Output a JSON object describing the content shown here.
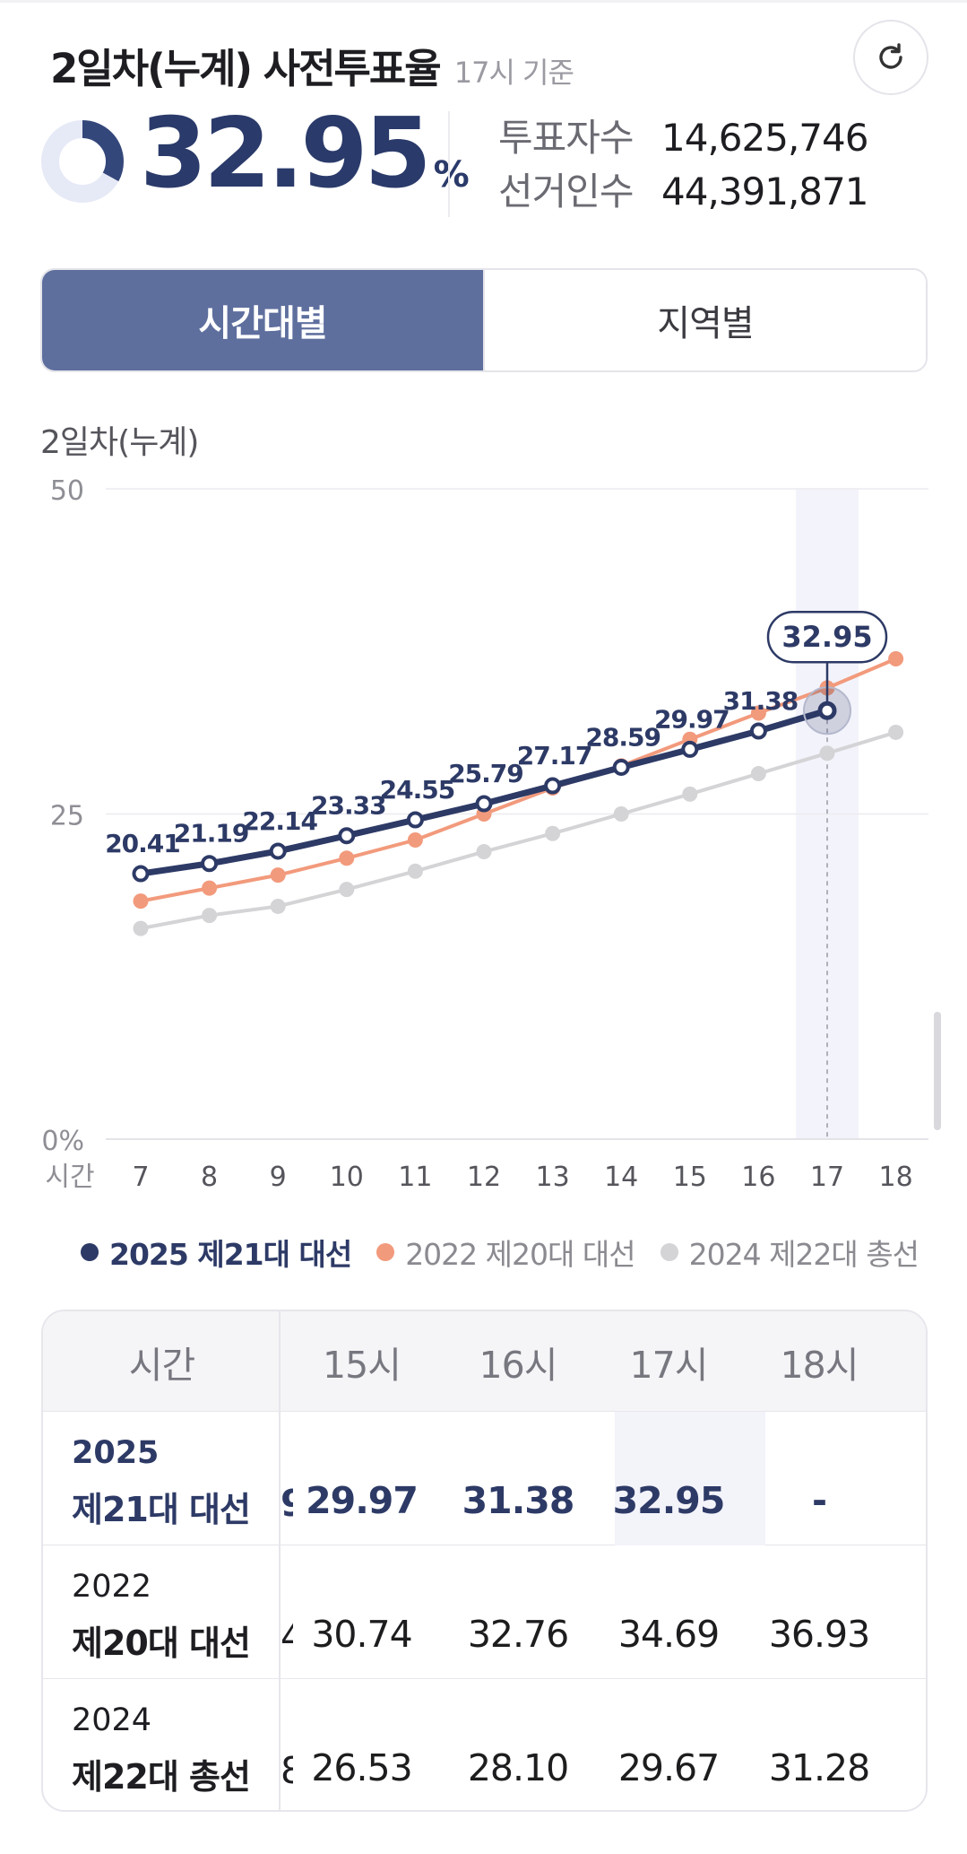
{
  "header": {
    "title": "2일차(누계) 사전투표율",
    "subtitle": "17시 기준"
  },
  "summary": {
    "rate": "32.95",
    "rate_unit": "%",
    "rate_fraction": 0.3295,
    "voters_label": "투표자수",
    "voters_value": "14,625,746",
    "electors_label": "선거인수",
    "electors_value": "44,391,871"
  },
  "tabs": [
    {
      "label": "시간대별",
      "active": true
    },
    {
      "label": "지역별",
      "active": false
    }
  ],
  "chart_caption": "2일차(누계)",
  "chart_data": {
    "type": "line",
    "title": "2일차(누계)",
    "xlabel": "시간",
    "ylabel": "",
    "ylim": [
      0,
      50
    ],
    "y_ticks": [
      "0%",
      "25",
      "50"
    ],
    "x": [
      "7",
      "8",
      "9",
      "10",
      "11",
      "12",
      "13",
      "14",
      "15",
      "16",
      "17",
      "18"
    ],
    "highlight_x": "17",
    "highlight_label": "32.95",
    "series": [
      {
        "name": "2025 제21대 대선",
        "color": "#2d3a66",
        "labels": true,
        "values": [
          20.41,
          21.19,
          22.14,
          23.33,
          24.55,
          25.79,
          27.17,
          28.59,
          29.97,
          31.38,
          32.95,
          null
        ],
        "label_texts": [
          "20.41",
          "21.19",
          "22.14",
          "23.33",
          "24.55",
          "25.79",
          "27.17",
          "28.59",
          "29.97",
          "31.38",
          "",
          ""
        ]
      },
      {
        "name": "2022 제20대 대선",
        "color": "#f29a7c",
        "labels": false,
        "values": [
          18.3,
          19.3,
          20.3,
          21.6,
          23.0,
          25.0,
          27.0,
          28.7,
          30.74,
          32.76,
          34.69,
          36.93
        ]
      },
      {
        "name": "2024 제22대 총선",
        "color": "#d4d4d7",
        "labels": false,
        "values": [
          16.2,
          17.2,
          17.9,
          19.2,
          20.6,
          22.1,
          23.5,
          25.0,
          26.53,
          28.1,
          29.67,
          31.28
        ]
      }
    ]
  },
  "legend": [
    {
      "label": "2025 제21대 대선",
      "color": "#2d3a66",
      "bold": true
    },
    {
      "label": "2022 제20대 대선",
      "color": "#f29a7c",
      "bold": false
    },
    {
      "label": "2024 제22대 총선",
      "color": "#d4d4d7",
      "bold": false
    }
  ],
  "table": {
    "corner_header": "시간",
    "columns": [
      "15시",
      "16시",
      "17시",
      "18시"
    ],
    "rows": [
      {
        "year": "2025",
        "election": "제21대 대선",
        "clipped": "9",
        "values": [
          "29.97",
          "31.38",
          "32.95",
          "-"
        ],
        "highlight": true
      },
      {
        "year": "2022",
        "election": "제20대 대선",
        "clipped": "4",
        "values": [
          "30.74",
          "32.76",
          "34.69",
          "36.93"
        ],
        "highlight": false
      },
      {
        "year": "2024",
        "election": "제22대 총선",
        "clipped": "8",
        "values": [
          "26.53",
          "28.10",
          "29.67",
          "31.28"
        ],
        "highlight": false
      }
    ]
  },
  "colors": {
    "accent_navy": "#2d3a66",
    "tab_active": "#5e6f9e",
    "series_2022": "#f29a7c",
    "series_2024": "#d4d4d7"
  }
}
